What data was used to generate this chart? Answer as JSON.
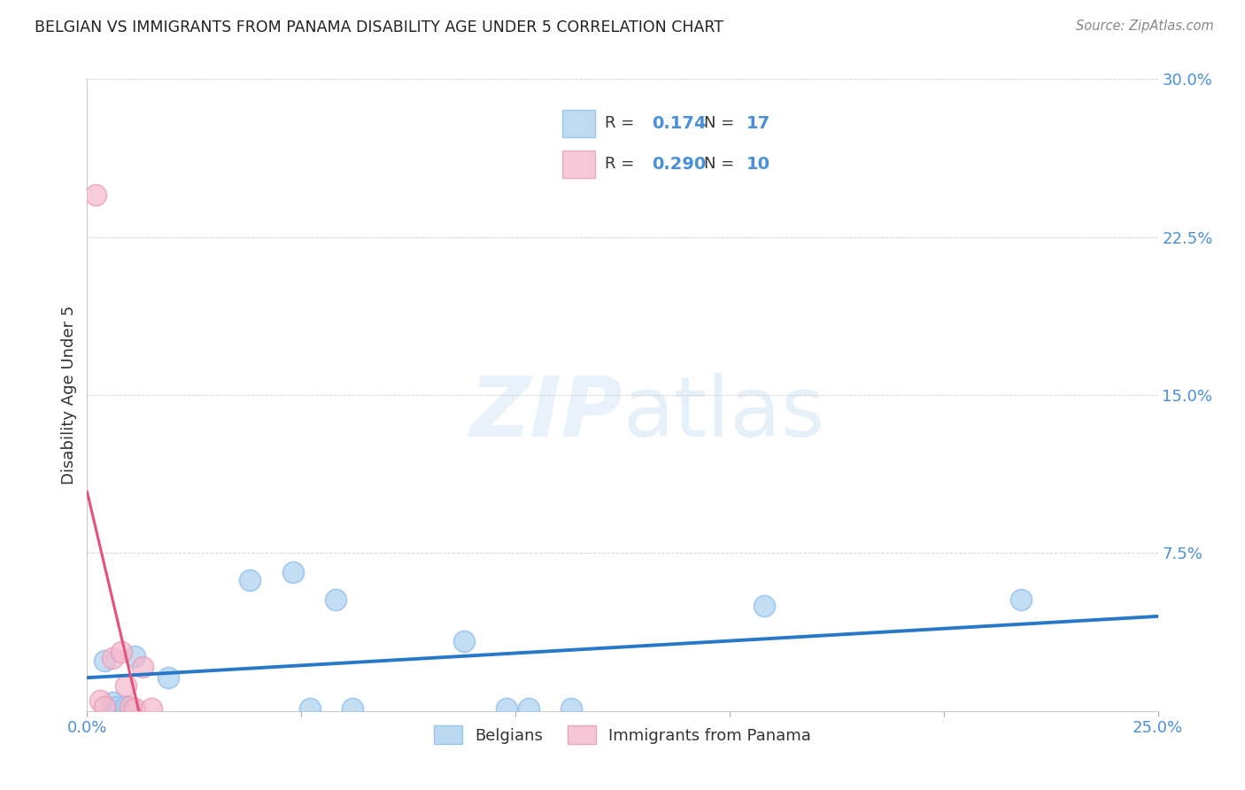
{
  "title": "BELGIAN VS IMMIGRANTS FROM PANAMA DISABILITY AGE UNDER 5 CORRELATION CHART",
  "source": "Source: ZipAtlas.com",
  "ylabel": "Disability Age Under 5",
  "xlim": [
    0.0,
    0.25
  ],
  "ylim": [
    0.0,
    0.3
  ],
  "yticks": [
    0.0,
    0.075,
    0.15,
    0.225,
    0.3
  ],
  "yticklabels": [
    "",
    "7.5%",
    "15.0%",
    "22.5%",
    "30.0%"
  ],
  "xtick_positions": [
    0.0,
    0.05,
    0.1,
    0.15,
    0.2,
    0.25
  ],
  "xticklabels": [
    "0.0%",
    "",
    "",
    "",
    "",
    "25.0%"
  ],
  "belgian_R": 0.174,
  "belgian_N": 17,
  "panama_R": 0.29,
  "panama_N": 10,
  "belgian_color": "#aacfee",
  "panama_color": "#f4b8cc",
  "belgian_line_color": "#2878c8",
  "panama_line_color": "#e8507a",
  "watermark_color": "#d5e8f5",
  "belgian_points_x": [
    0.004,
    0.006,
    0.007,
    0.009,
    0.011,
    0.019,
    0.038,
    0.048,
    0.052,
    0.058,
    0.062,
    0.088,
    0.098,
    0.103,
    0.113,
    0.158,
    0.218
  ],
  "belgian_points_y": [
    0.024,
    0.004,
    0.002,
    0.002,
    0.026,
    0.016,
    0.062,
    0.066,
    0.001,
    0.053,
    0.001,
    0.033,
    0.001,
    0.001,
    0.001,
    0.05,
    0.053
  ],
  "panama_points_x": [
    0.002,
    0.003,
    0.004,
    0.006,
    0.008,
    0.009,
    0.01,
    0.011,
    0.013,
    0.015
  ],
  "panama_points_y": [
    0.245,
    0.005,
    0.002,
    0.025,
    0.028,
    0.012,
    0.002,
    0.001,
    0.021,
    0.001
  ]
}
